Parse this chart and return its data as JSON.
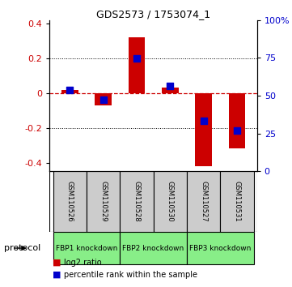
{
  "title": "GDS2573 / 1753074_1",
  "samples": [
    "GSM110526",
    "GSM110529",
    "GSM110528",
    "GSM110530",
    "GSM110527",
    "GSM110531"
  ],
  "log2_ratio": [
    0.02,
    -0.07,
    0.32,
    0.03,
    -0.42,
    -0.32
  ],
  "percentile_rank": [
    52,
    45,
    75,
    55,
    30,
    23
  ],
  "bar_color": "#cc0000",
  "dot_color": "#0000cc",
  "ylim": [
    -0.45,
    0.42
  ],
  "yticks": [
    -0.4,
    -0.2,
    0.0,
    0.2,
    0.4
  ],
  "right_yticks": [
    0,
    25,
    50,
    75,
    100
  ],
  "right_ylim": [
    0,
    100
  ],
  "zero_line_color": "#cc0000",
  "grid_color": "black",
  "sample_box_color": "#cccccc",
  "proto_color": "#88ee88",
  "bar_width": 0.5,
  "dot_size": 40,
  "protocol_groups": [
    {
      "indices": [
        0,
        1
      ],
      "label": "FBP1 knockdown"
    },
    {
      "indices": [
        2,
        3
      ],
      "label": "FBP2 knockdown"
    },
    {
      "indices": [
        4,
        5
      ],
      "label": "FBP3 knockdown"
    }
  ]
}
